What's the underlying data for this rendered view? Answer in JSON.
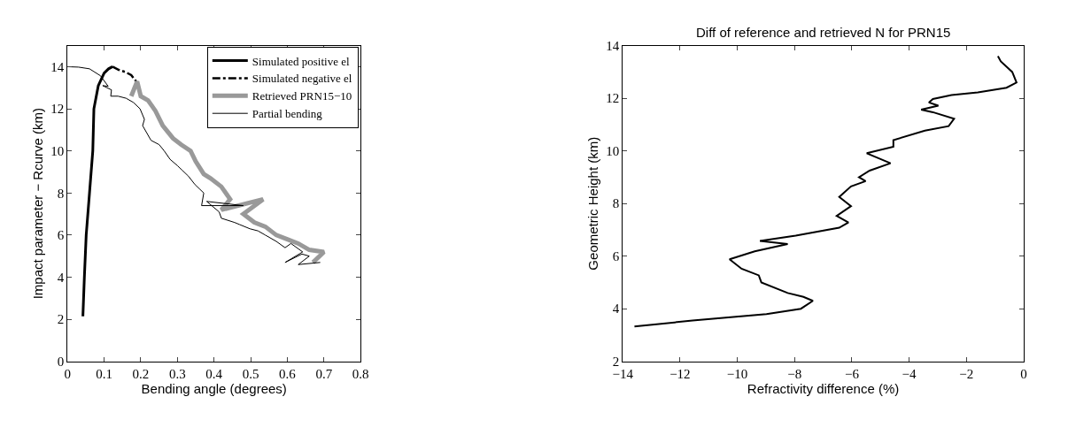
{
  "chart_data": [
    {
      "type": "line",
      "xlabel": "Bending angle (degrees)",
      "ylabel": "Impact parameter − Rcurve (km)",
      "xlim": [
        0,
        0.8
      ],
      "ylim": [
        0,
        15
      ],
      "xticks": [
        0,
        0.1,
        0.2,
        0.3,
        0.4,
        0.5,
        0.6,
        0.7,
        0.8
      ],
      "yticks": [
        0,
        2,
        4,
        6,
        8,
        10,
        12,
        14
      ],
      "legend": "top right",
      "marker": "none",
      "series": [
        {
          "name": "Simulated positive el",
          "color": "#000000",
          "line_style": "solid",
          "x": [
            0.042,
            0.046,
            0.051,
            0.06,
            0.069,
            0.072,
            0.084,
            0.1,
            0.112,
            0.123
          ],
          "values": [
            2.14,
            4,
            6,
            8,
            10,
            12,
            13.1,
            13.7,
            13.9,
            14
          ]
        },
        {
          "name": "Simulated negative el",
          "color": "#000000",
          "line_style": "dashdot",
          "x": [
            0.123,
            0.14,
            0.158,
            0.174,
            0.192
          ],
          "values": [
            14,
            13.85,
            13.75,
            13.6,
            13.2
          ]
        },
        {
          "name": "Retrieved PRN15−10",
          "color": "#999999",
          "line_style": "solid",
          "x": [
            0.174,
            0.19,
            0.2,
            0.22,
            0.24,
            0.26,
            0.288,
            0.31,
            0.336,
            0.35,
            0.372,
            0.39,
            0.42,
            0.444,
            0.42,
            0.534,
            0.48,
            0.51,
            0.54,
            0.57,
            0.6,
            0.63,
            0.66,
            0.7,
            0.67
          ],
          "values": [
            12.6,
            13.3,
            12.6,
            12.4,
            11.9,
            11.2,
            10.6,
            10.3,
            10,
            9.5,
            8.9,
            8.7,
            8.3,
            7.7,
            7.2,
            7.7,
            7,
            6.6,
            6.4,
            6,
            5.8,
            5.6,
            5.3,
            5.2,
            4.7
          ]
        },
        {
          "name": "Partial bending",
          "color": "#000000",
          "line_style": "solid",
          "x": [
            0,
            0.03,
            0.06,
            0.09,
            0.111,
            0.096,
            0.12,
            0.118,
            0.138,
            0.16,
            0.18,
            0.198,
            0.21,
            0.205,
            0.228,
            0.25,
            0.264,
            0.28,
            0.3,
            0.312,
            0.33,
            0.348,
            0.36,
            0.372,
            0.366,
            0.48,
            0.38,
            0.414,
            0.42,
            0.456,
            0.47,
            0.498,
            0.52,
            0.54,
            0.57,
            0.594,
            0.61,
            0.642,
            0.594,
            0.64,
            0.66,
            0.63,
            0.69
          ],
          "values": [
            14,
            13.98,
            13.9,
            13.57,
            13.07,
            13.1,
            12.9,
            12.6,
            12.6,
            12.5,
            12.3,
            12,
            11.5,
            11.2,
            10.5,
            10.3,
            10,
            9.6,
            9.3,
            9.1,
            8.8,
            8.4,
            8.2,
            8,
            7.4,
            7.4,
            7.6,
            7.1,
            6.8,
            6.6,
            6.5,
            6.3,
            6.2,
            6,
            5.7,
            5.4,
            5.6,
            5.2,
            4.7,
            5.1,
            5,
            4.6,
            4.7
          ]
        }
      ]
    },
    {
      "type": "line",
      "title": "Diff of reference and retrieved N for PRN15",
      "xlabel": "Refractivity difference (%)",
      "ylabel": "Geometric Height (km)",
      "xlim": [
        -14,
        0
      ],
      "ylim": [
        2,
        14
      ],
      "xticks": [
        -14,
        -12,
        -10,
        -8,
        -6,
        -4,
        -2,
        0
      ],
      "yticks": [
        2,
        4,
        6,
        8,
        10,
        12,
        14
      ],
      "legend": false,
      "marker": "none",
      "series": [
        {
          "color": "#000000",
          "line_style": "solid",
          "x": [
            -13.59,
            -11.56,
            -8.98,
            -7.78,
            -7.36,
            -7.69,
            -8.24,
            -9.16,
            -9.25,
            -9.85,
            -10.27,
            -9.39,
            -8.24,
            -9.21,
            -7.96,
            -6.44,
            -6.12,
            -6.53,
            -6.03,
            -6.44,
            -6.03,
            -5.52,
            -5.75,
            -5.38,
            -4.65,
            -5.48,
            -4.55,
            -4.55,
            -3.45,
            -2.62,
            -2.43,
            -3.17,
            -3.58,
            -2.98,
            -3.31,
            -3.17,
            -2.52,
            -1.6,
            -0.6,
            -0.25,
            -0.4,
            -0.8,
            -0.9
          ],
          "values": [
            3.33,
            3.55,
            3.8,
            4.0,
            4.3,
            4.45,
            4.6,
            5.0,
            5.27,
            5.52,
            5.88,
            6.18,
            6.46,
            6.58,
            6.78,
            7.08,
            7.28,
            7.53,
            7.9,
            8.25,
            8.65,
            8.85,
            9.0,
            9.25,
            9.53,
            9.91,
            10.16,
            10.41,
            10.77,
            10.94,
            11.22,
            11.47,
            11.57,
            11.72,
            11.84,
            11.97,
            12.12,
            12.22,
            12.4,
            12.6,
            13.0,
            13.4,
            13.6
          ]
        }
      ]
    }
  ]
}
